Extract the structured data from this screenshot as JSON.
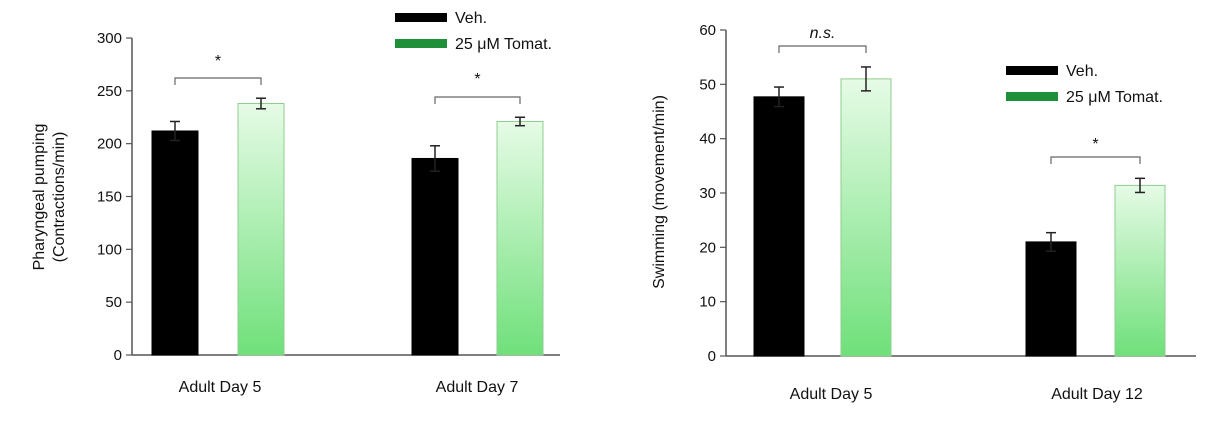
{
  "chart_data": [
    {
      "type": "bar",
      "ylabel_lines": [
        "Pharyngeal pumping",
        "(Contractions/min)"
      ],
      "categories": [
        "Adult Day 5",
        "Adult Day 7"
      ],
      "ylim": [
        0,
        300
      ],
      "yticks": [
        0,
        50,
        100,
        150,
        200,
        250,
        300
      ],
      "grid": false,
      "legend_position": "top-right",
      "series": [
        {
          "name": "Veh.",
          "values": [
            212,
            186
          ],
          "errors": [
            9,
            12
          ]
        },
        {
          "name": "25 μM Tomat.",
          "values": [
            238,
            221
          ],
          "errors": [
            5,
            4
          ]
        }
      ],
      "annotations": [
        "*",
        "*"
      ]
    },
    {
      "type": "bar",
      "ylabel": "Swimming (movement/min)",
      "categories": [
        "Adult Day 5",
        "Adult Day 12"
      ],
      "ylim": [
        0,
        60
      ],
      "yticks": [
        0,
        10,
        20,
        30,
        40,
        50,
        60
      ],
      "grid": false,
      "legend_position": "top-right",
      "series": [
        {
          "name": "Veh.",
          "values": [
            47.7,
            21
          ],
          "errors": [
            1.8,
            1.7
          ]
        },
        {
          "name": "25 μM Tomat.",
          "values": [
            51,
            31.4
          ],
          "errors": [
            2.2,
            1.3
          ]
        }
      ],
      "annotations": [
        "n.s.",
        "*"
      ]
    }
  ],
  "colors": {
    "veh": "#000000",
    "tomat_light": "#e6fbe6",
    "tomat_dark": "#6fe07a",
    "tomat_border": "#8fce8f",
    "legend_green": "#1f8f3a"
  }
}
